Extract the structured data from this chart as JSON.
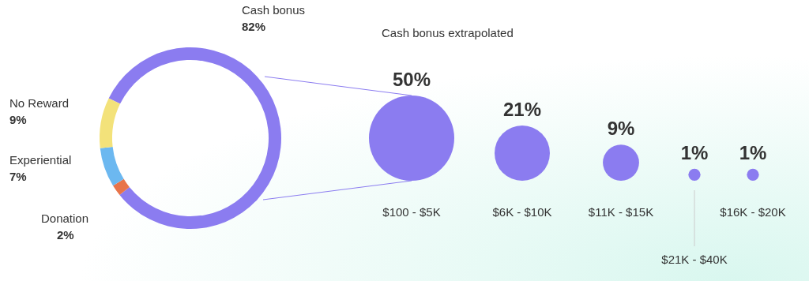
{
  "chart_data": [
    {
      "type": "donut",
      "categories": [
        "Cash bonus",
        "Donation",
        "Experiential",
        "No Reward"
      ],
      "values": [
        82,
        2,
        7,
        9
      ],
      "colors": [
        "#8b7cf0",
        "#e8744a",
        "#6cb8f0",
        "#f3e27a"
      ],
      "value_labels": [
        "82%",
        "2%",
        "7%",
        "9%"
      ]
    },
    {
      "type": "other",
      "title": "Cash bonus extrapolated",
      "categories": [
        "$100 - $5K",
        "$6K - $10K",
        "$11K - $15K",
        "$21K - $40K",
        "$16K - $20K"
      ],
      "values": [
        50,
        21,
        9,
        1,
        1
      ],
      "color": "#8b7cf0",
      "value_labels": [
        "50%",
        "21%",
        "9%",
        "1%",
        "1%"
      ]
    }
  ]
}
